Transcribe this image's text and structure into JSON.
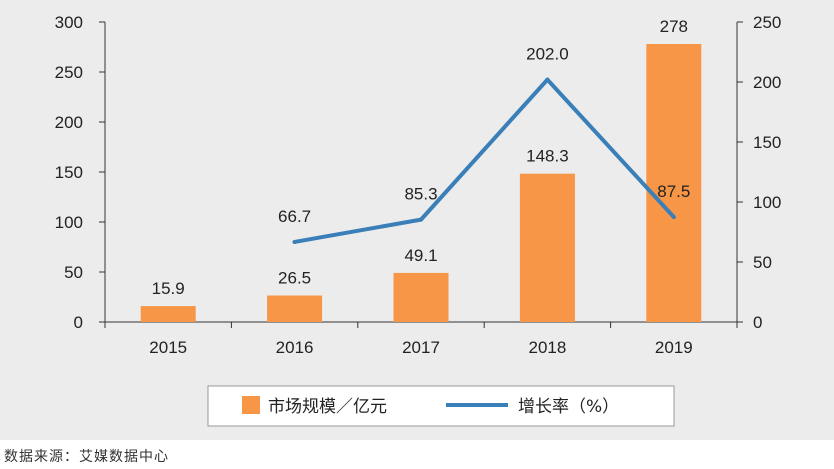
{
  "chart_data": {
    "type": "bar",
    "categories": [
      "2015",
      "2016",
      "2017",
      "2018",
      "2019"
    ],
    "series": [
      {
        "name": "市场规模／亿元",
        "type": "bar",
        "axis": "left",
        "values": [
          15.9,
          26.5,
          49.1,
          148.3,
          278
        ],
        "labels": [
          "15.9",
          "26.5",
          "49.1",
          "148.3",
          "278"
        ]
      },
      {
        "name": "增长率（%）",
        "type": "line",
        "axis": "right",
        "values": [
          null,
          66.7,
          85.3,
          202.0,
          87.5
        ],
        "labels": [
          "",
          "66.7",
          "85.3",
          "202.0",
          "87.5"
        ]
      }
    ],
    "y_left": {
      "ylim": [
        0,
        300
      ],
      "ticks": [
        0,
        50,
        100,
        150,
        200,
        250,
        300
      ]
    },
    "y_right": {
      "ylim": [
        0,
        250
      ],
      "ticks": [
        0,
        50,
        100,
        150,
        200,
        250
      ]
    },
    "legend": {
      "placement": "bottom"
    },
    "grid": false,
    "colors": {
      "bar": "#f79646",
      "line": "#3a7fb7",
      "background": "#ececec",
      "axis": "#333333"
    }
  },
  "source_note": "数据来源：艾媒数据中心"
}
